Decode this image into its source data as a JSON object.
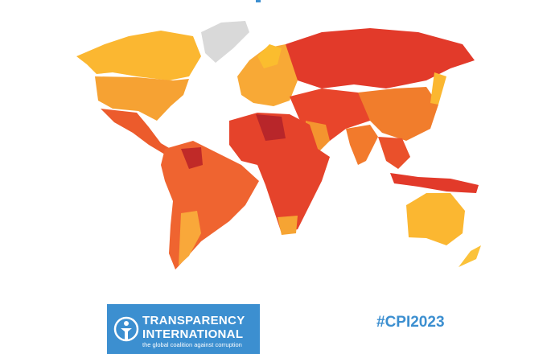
{
  "logo": {
    "line1": "TRANSPARENCY",
    "line2": "INTERNATIONAL",
    "tagline": "the global coalition against corruption"
  },
  "hashtag": "#CPI2023"
}
